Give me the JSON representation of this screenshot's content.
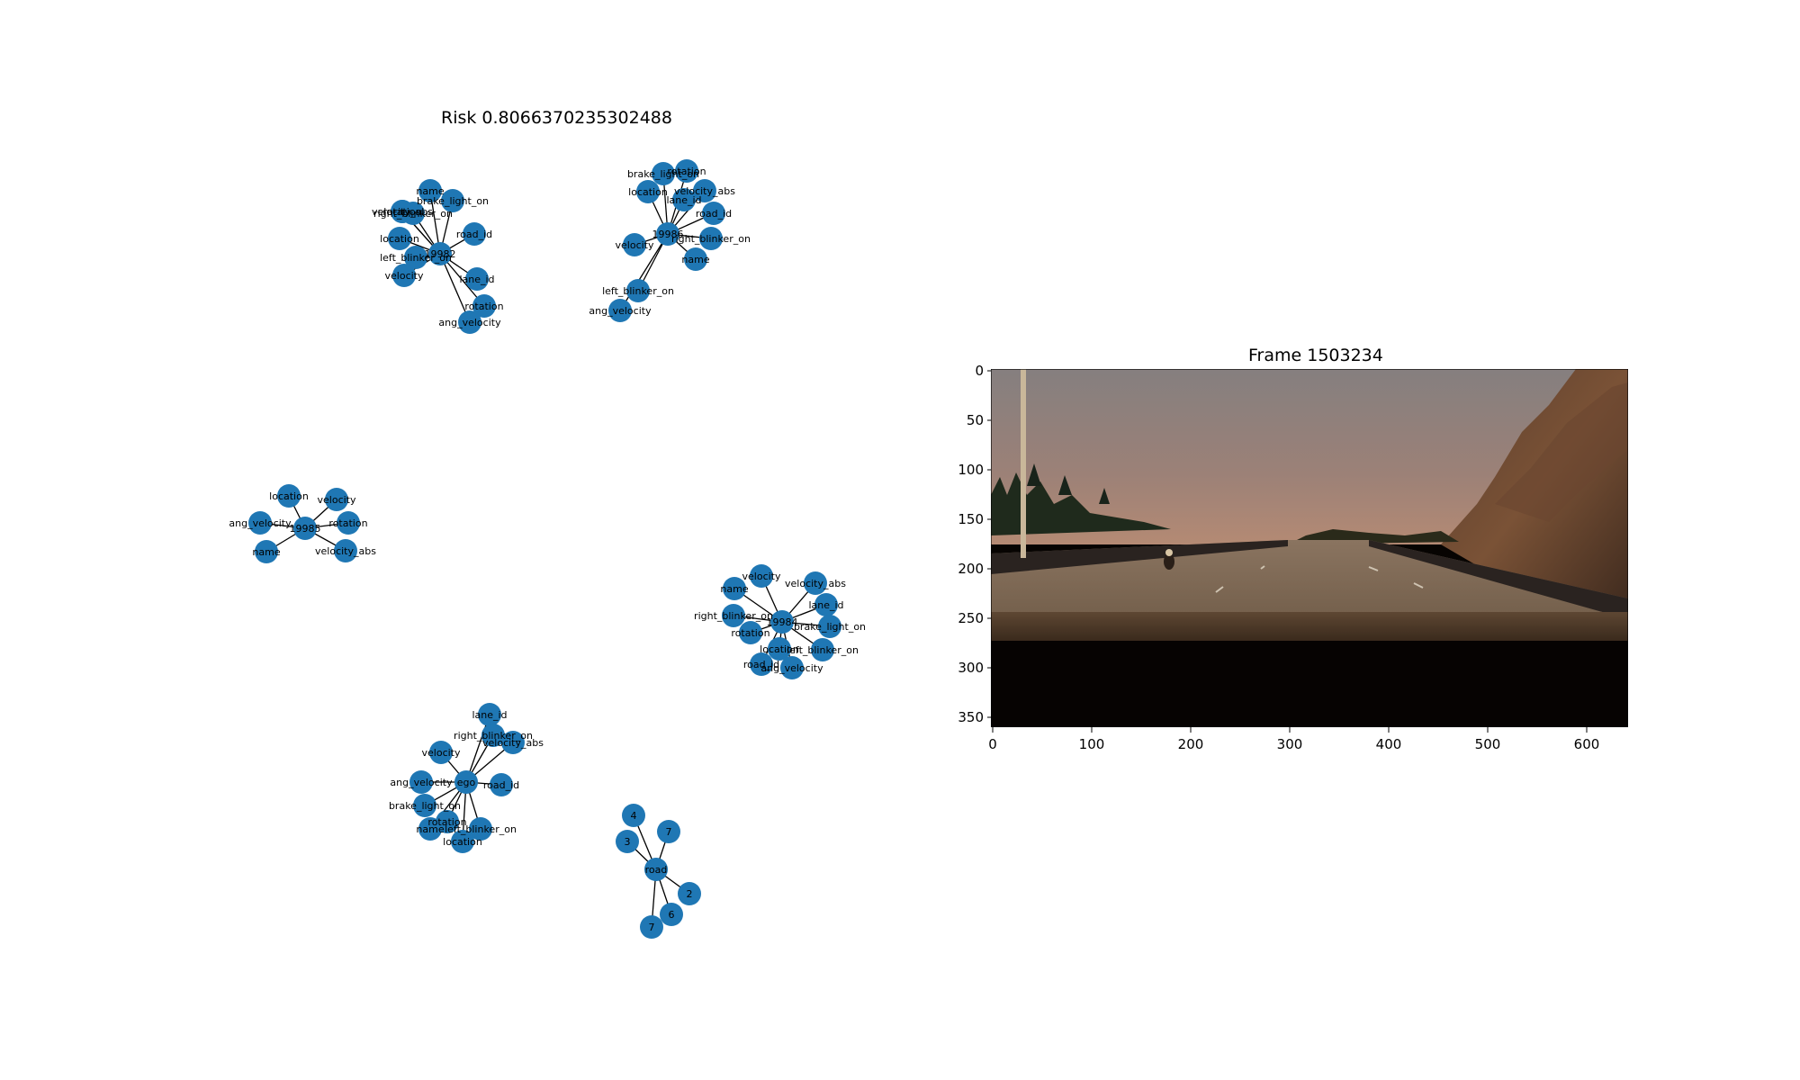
{
  "risk_title": "Risk 0.8066370235302488",
  "frame_title": "Frame 1503234",
  "node_color": "#1f77b4",
  "graphs": [
    {
      "center": "19982",
      "leaves": [
        "name",
        "brake_light_on",
        "velocity_abs",
        "rotation",
        "right_blinker_on",
        "road_id",
        "location",
        "left_blinker_on",
        "velocity",
        "lane_id",
        "rotation",
        "ang_velocity"
      ]
    },
    {
      "center": "19986",
      "leaves": [
        "brake_light_on",
        "rotation",
        "location",
        "velocity_abs",
        "lane_id",
        "road_id",
        "velocity",
        "right_blinker_on",
        "name",
        "left_blinker_on",
        "ang_velocity"
      ]
    },
    {
      "center": "19985",
      "leaves": [
        "location",
        "velocity",
        "ang_velocity",
        "rotation",
        "name",
        "velocity_abs"
      ]
    },
    {
      "center": "19984",
      "leaves": [
        "velocity",
        "name",
        "velocity_abs",
        "lane_id",
        "right_blinker_on",
        "rotation",
        "brake_light_on",
        "location",
        "left_blinker_on",
        "road_id",
        "ang_velocity"
      ]
    },
    {
      "center": "ego",
      "leaves": [
        "lane_id",
        "right_blinker_on",
        "velocity_abs",
        "velocity",
        "ang_velocity",
        "road_id",
        "brake_light_on",
        "rotation",
        "name",
        "left_blinker_on",
        "location"
      ]
    },
    {
      "center": "road",
      "leaves": [
        "4",
        "7",
        "3",
        "2",
        "6",
        "7"
      ]
    }
  ],
  "frame_axes": {
    "x_ticks": [
      "0",
      "100",
      "200",
      "300",
      "400",
      "500",
      "600"
    ],
    "y_ticks": [
      "0",
      "50",
      "100",
      "150",
      "200",
      "250",
      "300",
      "350"
    ],
    "x_range": [
      0,
      640
    ],
    "y_range": [
      0,
      360
    ]
  }
}
